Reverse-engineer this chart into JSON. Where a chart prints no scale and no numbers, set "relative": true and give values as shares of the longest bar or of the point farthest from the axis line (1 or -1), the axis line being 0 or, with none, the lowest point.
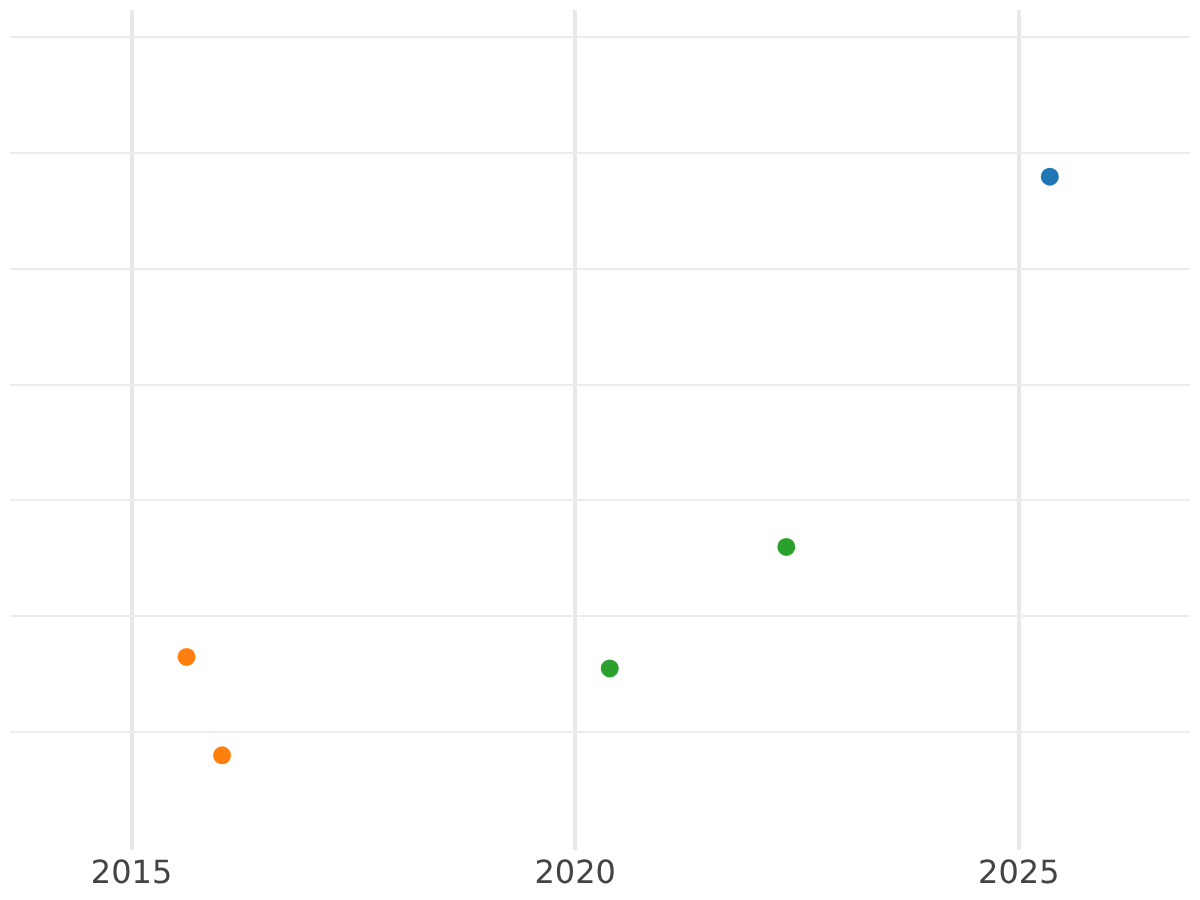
{
  "chart_data": {
    "type": "scatter",
    "relative": true,
    "grid": true,
    "marker": "circle",
    "legend": false,
    "xlim": [
      2013.63,
      2026.93
    ],
    "xticks": [
      2015,
      2020,
      2025
    ],
    "series": [
      {
        "color": "#1f77b4",
        "x": [
          2025.35
        ],
        "values": [
          1
        ]
      },
      {
        "color": "#ff7f0e",
        "x": [
          2015.62,
          2016.02
        ],
        "values": [
          0.17,
          0
        ]
      },
      {
        "color": "#2ca02c",
        "x": [
          2020.39,
          2022.38
        ],
        "values": [
          0.15,
          0.36
        ]
      }
    ]
  }
}
